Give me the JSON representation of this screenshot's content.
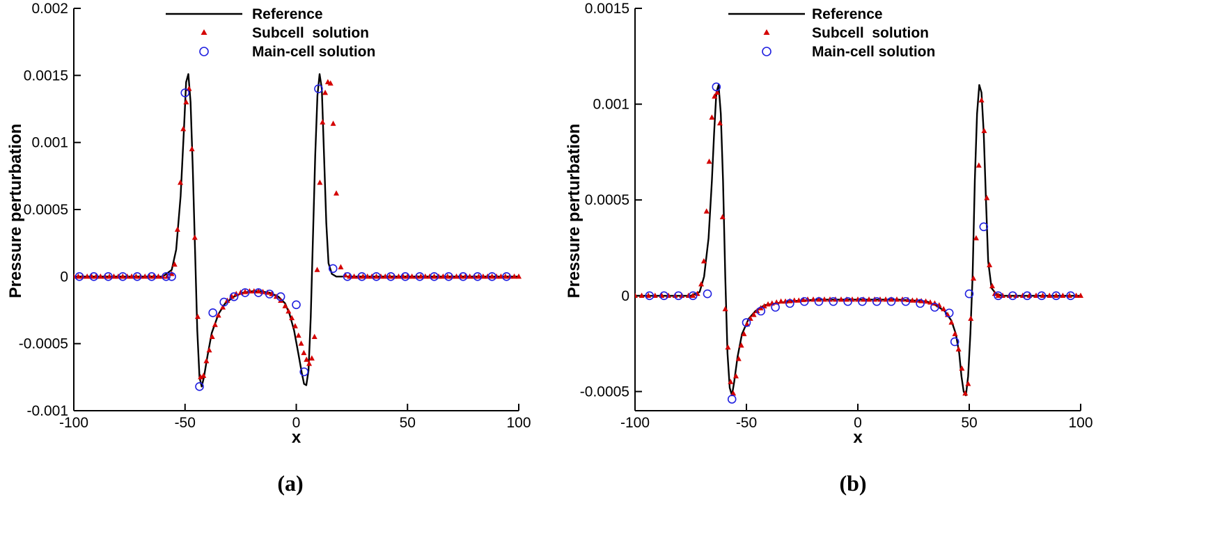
{
  "chart_data": [
    {
      "type": "line",
      "panel_label": "(a)",
      "xlabel": "x",
      "ylabel": "Pressure perturbation",
      "xlim": [
        -100,
        100
      ],
      "ylim": [
        -0.001,
        0.002
      ],
      "x_ticks": [
        -100,
        -50,
        0,
        50,
        100
      ],
      "x_tick_labels": [
        "-100",
        "-50",
        "0",
        "50",
        "100"
      ],
      "y_ticks": [
        -0.001,
        -0.0005,
        0,
        0.0005,
        0.001,
        0.0015,
        0.002
      ],
      "y_tick_labels": [
        "-0.001",
        "-0.0005",
        "0",
        "0.0005",
        "0.001",
        "0.0015",
        "0.002"
      ],
      "legend_position": "top",
      "legend": [
        "Reference",
        "Subcell  solution",
        "Main-cell solution"
      ],
      "colors": {
        "reference": "#000000",
        "subcell": "#d40000",
        "maincell": "#2020e0"
      },
      "series": [
        {
          "name": "Reference",
          "style": "line",
          "x": [
            -100,
            -60,
            -56,
            -54,
            -52,
            -50.5,
            -49.5,
            -48.5,
            -47.5,
            -46.5,
            -45.5,
            -44.5,
            -43.5,
            -42.5,
            -41.5,
            -40,
            -38,
            -35,
            -32,
            -28,
            -24,
            -20,
            -16,
            -12,
            -8,
            -5,
            -3,
            -1,
            1,
            2.5,
            3.5,
            4.5,
            5.5,
            6.5,
            7.5,
            8.5,
            9.5,
            10.5,
            11.5,
            12.5,
            13.5,
            14.5,
            16,
            18,
            22,
            30,
            100
          ],
          "y": [
            0,
            0,
            5e-05,
            0.0002,
            0.0006,
            0.0011,
            0.00145,
            0.00151,
            0.0013,
            0.0008,
            0.0002,
            -0.0004,
            -0.00075,
            -0.00082,
            -0.00075,
            -0.0006,
            -0.00042,
            -0.00028,
            -0.0002,
            -0.00015,
            -0.00012,
            -0.00011,
            -0.00011,
            -0.00012,
            -0.00015,
            -0.0002,
            -0.00028,
            -0.0004,
            -0.00058,
            -0.00072,
            -0.0008,
            -0.00081,
            -0.0007,
            -0.0003,
            0.0003,
            0.0009,
            0.00135,
            0.00151,
            0.0014,
            0.0009,
            0.0004,
            0.0001,
            2e-05,
            0,
            0,
            0,
            0
          ]
        },
        {
          "name": "Subcell  solution",
          "style": "triangle",
          "x": [
            -100,
            -98,
            -96,
            -94,
            -92,
            -90,
            -88,
            -86,
            -84,
            -82,
            -80,
            -78,
            -76,
            -74,
            -72,
            -70,
            -68,
            -66,
            -64,
            -62,
            -60,
            -58,
            -56,
            -54.7,
            -53.4,
            -52.1,
            -50.8,
            -49.5,
            -48.2,
            -46.9,
            -45.6,
            -44.3,
            -43,
            -41.7,
            -40.4,
            -39.1,
            -37.8,
            -36.5,
            -35,
            -33,
            -31,
            -29,
            -27,
            -25,
            -23,
            -21,
            -19,
            -17,
            -15,
            -13,
            -11,
            -9,
            -7,
            -5,
            -3.5,
            -2,
            -0.5,
            1,
            2.2,
            3.4,
            4.6,
            5.8,
            7,
            8.2,
            9.4,
            10.6,
            11.8,
            13,
            14.2,
            15.4,
            16.6,
            18,
            20,
            22,
            24,
            26,
            28,
            30,
            32,
            34,
            36,
            38,
            40,
            42,
            44,
            46,
            48,
            50,
            52,
            54,
            56,
            58,
            60,
            62,
            64,
            66,
            68,
            70,
            72,
            74,
            76,
            78,
            80,
            82,
            84,
            86,
            88,
            90,
            92,
            94,
            96,
            98,
            100
          ],
          "y": [
            0,
            0,
            0,
            0,
            0,
            0,
            0,
            0,
            0,
            0,
            0,
            0,
            0,
            0,
            0,
            0,
            0,
            0,
            0,
            0,
            0,
            0,
            2e-05,
            9e-05,
            0.00035,
            0.0007,
            0.0011,
            0.0013,
            0.0014,
            0.00095,
            0.00029,
            -0.0003,
            -0.00075,
            -0.00074,
            -0.00063,
            -0.00055,
            -0.00045,
            -0.00036,
            -0.00029,
            -0.00023,
            -0.00018,
            -0.00015,
            -0.00013,
            -0.00012,
            -0.000115,
            -0.00011,
            -0.00011,
            -0.00011,
            -0.000115,
            -0.00012,
            -0.00013,
            -0.00015,
            -0.00018,
            -0.00022,
            -0.00026,
            -0.00031,
            -0.00037,
            -0.00044,
            -0.0005,
            -0.00057,
            -0.00062,
            -0.00065,
            -0.00061,
            -0.00045,
            5e-05,
            0.0007,
            0.00115,
            0.00137,
            0.00145,
            0.00144,
            0.00114,
            0.00062,
            7e-05,
            1e-05,
            0,
            0,
            0,
            0,
            0,
            0,
            0,
            0,
            0,
            0,
            0,
            0,
            0,
            0,
            0,
            0,
            0,
            0,
            0,
            0,
            0,
            0,
            0,
            0,
            0,
            0,
            0,
            0,
            0,
            0,
            0,
            0,
            0,
            0,
            0,
            0,
            0,
            0,
            0
          ]
        },
        {
          "name": "Main-cell solution",
          "style": "circle",
          "x": [
            -97.5,
            -91,
            -84.5,
            -78,
            -71.5,
            -65,
            -58.5,
            -56,
            -50,
            -43.5,
            -37.5,
            -32.5,
            -28,
            -23,
            -17,
            -12,
            -7,
            0,
            3.5,
            10,
            16.5,
            23,
            29.5,
            36,
            42.5,
            49,
            55.5,
            62,
            68.5,
            75,
            81.5,
            88,
            94.5
          ],
          "y": [
            0,
            0,
            0,
            0,
            0,
            0,
            0,
            0,
            0.00137,
            -0.00082,
            -0.00027,
            -0.00019,
            -0.00015,
            -0.00012,
            -0.00012,
            -0.00013,
            -0.00015,
            -0.00021,
            -0.00071,
            0.0014,
            6e-05,
            0,
            0,
            0,
            0,
            0,
            0,
            0,
            0,
            0,
            0,
            0,
            0
          ]
        }
      ]
    },
    {
      "type": "line",
      "panel_label": "(b)",
      "xlabel": "x",
      "ylabel": "Pressure perturbation",
      "xlim": [
        -100,
        100
      ],
      "ylim": [
        -0.0006,
        0.0015
      ],
      "x_ticks": [
        -100,
        -50,
        0,
        50,
        100
      ],
      "x_tick_labels": [
        "-100",
        "-50",
        "0",
        "50",
        "100"
      ],
      "y_ticks": [
        -0.0005,
        0,
        0.0005,
        0.001,
        0.0015
      ],
      "y_tick_labels": [
        "-0.0005",
        "0",
        "0.0005",
        "0.001",
        "0.0015"
      ],
      "legend_position": "top",
      "legend": [
        "Reference",
        "Subcell  solution",
        "Main-cell solution"
      ],
      "colors": {
        "reference": "#000000",
        "subcell": "#d40000",
        "maincell": "#2020e0"
      },
      "series": [
        {
          "name": "Reference",
          "style": "line",
          "x": [
            -100,
            -75,
            -71,
            -69,
            -67,
            -65.5,
            -64.5,
            -63.5,
            -62.5,
            -61.5,
            -60.5,
            -59.5,
            -58.5,
            -57.5,
            -56.5,
            -55.5,
            -54,
            -52,
            -49,
            -46,
            -42,
            -37,
            -31,
            -25,
            -18,
            -10,
            0,
            10,
            18,
            25,
            31,
            35,
            39,
            42,
            44,
            45.5,
            46.5,
            47.5,
            48.5,
            49.5,
            50.5,
            51.5,
            52.5,
            53.5,
            54.5,
            55.5,
            56.5,
            57.5,
            58.5,
            60,
            62,
            65,
            75,
            100
          ],
          "y": [
            0,
            0,
            2e-05,
            0.0001,
            0.0003,
            0.0006,
            0.00085,
            0.00106,
            0.0011,
            0.00095,
            0.0006,
            0.0001,
            -0.0003,
            -0.00048,
            -0.00052,
            -0.00045,
            -0.00032,
            -0.0002,
            -0.00012,
            -8e-05,
            -5e-05,
            -4e-05,
            -3e-05,
            -2.5e-05,
            -2e-05,
            -2e-05,
            -2e-05,
            -2e-05,
            -2e-05,
            -2.5e-05,
            -3e-05,
            -5e-05,
            -8e-05,
            -0.00013,
            -0.0002,
            -0.0003,
            -0.00042,
            -0.0005,
            -0.00052,
            -0.00042,
            -0.0002,
            0.0001,
            0.0006,
            0.00095,
            0.0011,
            0.00106,
            0.00085,
            0.0005,
            0.00018,
            4e-05,
            1e-05,
            0,
            0,
            0
          ]
        },
        {
          "name": "Subcell  solution",
          "style": "triangle",
          "x": [
            -100,
            -97,
            -94,
            -91,
            -88,
            -85,
            -82,
            -79,
            -76,
            -74,
            -72,
            -70.3,
            -69.1,
            -67.9,
            -66.7,
            -65.5,
            -64.3,
            -63.1,
            -61.9,
            -60.7,
            -59.5,
            -58.3,
            -57.1,
            -55.9,
            -54.7,
            -53.5,
            -52.3,
            -51.1,
            -49.7,
            -48.2,
            -46.7,
            -45.2,
            -43.6,
            -42,
            -40.3,
            -38.5,
            -36.5,
            -34.5,
            -32.5,
            -30.5,
            -28.5,
            -26.5,
            -24.5,
            -22.5,
            -20,
            -17.5,
            -15,
            -12.5,
            -10,
            -7.5,
            -5,
            -2.5,
            0,
            2.5,
            5,
            7.5,
            10,
            12.5,
            15,
            17.5,
            20,
            22.5,
            24.5,
            26.5,
            28.5,
            30.5,
            32.5,
            34.5,
            36.5,
            38.5,
            40.3,
            42,
            43.6,
            45.2,
            46.7,
            48.2,
            49.5,
            50.7,
            51.9,
            53.1,
            54.3,
            55.5,
            56.7,
            57.9,
            59.1,
            60.3,
            61.5,
            63,
            65,
            68,
            71,
            74,
            77,
            80,
            83,
            86,
            89,
            92,
            95,
            98,
            100
          ],
          "y": [
            0,
            0,
            0,
            0,
            0,
            0,
            0,
            0,
            0,
            0,
            1e-05,
            6e-05,
            0.00018,
            0.00044,
            0.0007,
            0.00093,
            0.00104,
            0.00106,
            0.0009,
            0.00041,
            -7e-05,
            -0.00027,
            -0.00045,
            -0.00051,
            -0.00042,
            -0.00033,
            -0.00026,
            -0.0002,
            -0.00015,
            -0.00012,
            -0.0001,
            -8e-05,
            -6.5e-05,
            -5.5e-05,
            -4.5e-05,
            -4e-05,
            -3.5e-05,
            -3e-05,
            -3e-05,
            -2.8e-05,
            -2.5e-05,
            -2.5e-05,
            -2.2e-05,
            -2e-05,
            -2e-05,
            -2e-05,
            -2e-05,
            -2e-05,
            -2e-05,
            -2e-05,
            -2e-05,
            -2e-05,
            -2e-05,
            -2e-05,
            -2e-05,
            -2e-05,
            -2e-05,
            -2e-05,
            -2e-05,
            -2e-05,
            -2e-05,
            -2.2e-05,
            -2.5e-05,
            -2.5e-05,
            -2.8e-05,
            -3e-05,
            -3.5e-05,
            -4e-05,
            -5e-05,
            -7e-05,
            -0.0001,
            -0.00014,
            -0.0002,
            -0.00028,
            -0.00038,
            -0.00051,
            -0.00046,
            -0.00012,
            9e-05,
            0.0003,
            0.00068,
            0.00102,
            0.00086,
            0.00051,
            0.00016,
            5e-05,
            1e-05,
            0,
            0,
            0,
            0,
            0,
            0,
            0,
            0,
            0,
            0,
            0,
            0,
            0,
            0
          ]
        },
        {
          "name": "Main-cell solution",
          "style": "circle",
          "x": [
            -93.5,
            -87,
            -80.5,
            -74,
            -67.5,
            -63.5,
            -56.5,
            -50,
            -43.5,
            -37,
            -30.5,
            -24,
            -17.5,
            -11,
            -4.5,
            2,
            8.5,
            15,
            21.5,
            28,
            34.5,
            41,
            43.5,
            50,
            56.5,
            63,
            69.5,
            76,
            82.5,
            89,
            95.5
          ],
          "y": [
            0,
            0,
            0,
            0,
            1e-05,
            0.00109,
            -0.00054,
            -0.00014,
            -8e-05,
            -6e-05,
            -4e-05,
            -3e-05,
            -3e-05,
            -3e-05,
            -3e-05,
            -3e-05,
            -3e-05,
            -3e-05,
            -3e-05,
            -4e-05,
            -6e-05,
            -9e-05,
            -0.00024,
            1e-05,
            0.00036,
            0,
            0,
            0,
            0,
            0,
            0
          ]
        }
      ]
    }
  ]
}
